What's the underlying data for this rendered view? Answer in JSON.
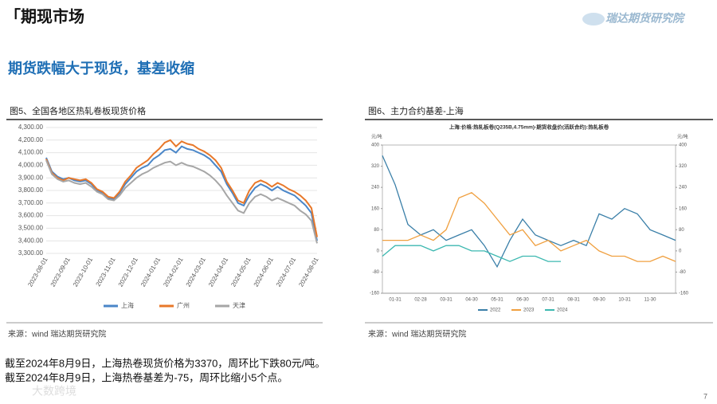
{
  "header": {
    "title": "期现市场",
    "logo": "瑞达期货研究院"
  },
  "subtitle": "期货跌幅大于现货，基差收缩",
  "figures": [
    {
      "caption": "图5、全国各地区热轧卷板现货价格",
      "source": "来源：wind  瑞达期货研究院"
    },
    {
      "caption": "图6、主力合约基差-上海",
      "source": "来源：wind  瑞达期货研究院"
    }
  ],
  "notes": [
    "截至2024年8月9日，上海热卷现货价格为3370，周环比下跌80元/吨。",
    "截至2024年8月9日，上海热卷基差为-75，周环比缩小5个点。"
  ],
  "watermark": "大数跨境",
  "page_number": "7",
  "chart_data": [
    {
      "type": "line",
      "categories": [
        "2023-08-01",
        null,
        null,
        null,
        "2023-09-01",
        null,
        null,
        null,
        "2023-10-01",
        null,
        null,
        null,
        "2023-11-01",
        null,
        null,
        null,
        "2023-12-01",
        null,
        null,
        null,
        "2024-01-01",
        null,
        null,
        null,
        "2024-02-01",
        null,
        null,
        null,
        "2024-03-01",
        null,
        null,
        null,
        "2024-04-01",
        null,
        null,
        null,
        "2024-05-01",
        null,
        null,
        null,
        "2024-06-01",
        null,
        null,
        null,
        "2024-07-01",
        null,
        null,
        null,
        "2024-08-01"
      ],
      "series": [
        {
          "name": "上海",
          "color": "#4a86c8",
          "values": [
            4060,
            3950,
            3910,
            3890,
            3900,
            3880,
            3870,
            3880,
            3850,
            3800,
            3780,
            3740,
            3730,
            3780,
            3850,
            3900,
            3950,
            3980,
            4000,
            4050,
            4080,
            4120,
            4130,
            4100,
            4150,
            4130,
            4120,
            4100,
            4080,
            4050,
            4000,
            3950,
            3850,
            3780,
            3700,
            3680,
            3760,
            3820,
            3850,
            3830,
            3800,
            3830,
            3800,
            3780,
            3760,
            3720,
            3680,
            3620,
            3400
          ]
        },
        {
          "name": "广州",
          "color": "#e8782a",
          "values": [
            4050,
            3940,
            3900,
            3880,
            3900,
            3890,
            3880,
            3890,
            3860,
            3810,
            3790,
            3750,
            3740,
            3790,
            3870,
            3920,
            3980,
            4010,
            4040,
            4090,
            4130,
            4180,
            4200,
            4150,
            4190,
            4170,
            4160,
            4130,
            4110,
            4080,
            4040,
            3980,
            3870,
            3800,
            3720,
            3700,
            3800,
            3860,
            3880,
            3860,
            3830,
            3860,
            3840,
            3810,
            3790,
            3760,
            3720,
            3660,
            3430
          ]
        },
        {
          "name": "天津",
          "color": "#a6a6a6",
          "values": [
            4040,
            3930,
            3890,
            3870,
            3880,
            3860,
            3850,
            3860,
            3830,
            3790,
            3770,
            3730,
            3720,
            3760,
            3820,
            3860,
            3900,
            3930,
            3950,
            3980,
            4000,
            4020,
            4030,
            4000,
            4020,
            4000,
            3990,
            3970,
            3950,
            3920,
            3880,
            3830,
            3760,
            3700,
            3640,
            3620,
            3700,
            3750,
            3770,
            3750,
            3720,
            3740,
            3720,
            3700,
            3680,
            3640,
            3610,
            3560,
            3380
          ]
        }
      ],
      "ylim": [
        3300,
        4300
      ],
      "yticks": [
        {
          "value": 3300,
          "label": "3,300.00"
        },
        {
          "value": 3400,
          "label": "3,400.00"
        },
        {
          "value": 3500,
          "label": "3,500.00"
        },
        {
          "value": 3600,
          "label": "3,600.00"
        },
        {
          "value": 3700,
          "label": "3,700.00"
        },
        {
          "value": 3800,
          "label": "3,800.00"
        },
        {
          "value": 3900,
          "label": "3,900.00"
        },
        {
          "value": 4000,
          "label": "4,000.00"
        },
        {
          "value": 4100,
          "label": "4,100.00"
        },
        {
          "value": 4200,
          "label": "4,200.00"
        },
        {
          "value": 4300,
          "label": "4,300.00"
        }
      ],
      "grid": true,
      "legend": "bottom"
    },
    {
      "type": "line",
      "title": "上海:价格:热轧板卷(Q235B,4.75mm)-期货收盘价(活跃合约):热轧板卷",
      "y_label": "元/吨",
      "y2_label": "元/吨",
      "categories": [
        null,
        "01-31",
        null,
        "02-28",
        null,
        "03-31",
        null,
        "04-30",
        null,
        "05-31",
        null,
        "06-30",
        null,
        "07-31",
        null,
        "08-31",
        null,
        "09-30",
        null,
        "10-31",
        null,
        "11-30",
        null,
        null
      ],
      "series": [
        {
          "name": "2022",
          "color": "#3a7fa8",
          "values": [
            360,
            250,
            100,
            60,
            80,
            40,
            60,
            80,
            20,
            -60,
            40,
            120,
            60,
            40,
            20,
            40,
            20,
            140,
            120,
            160,
            140,
            80,
            60,
            40
          ]
        },
        {
          "name": "2023",
          "color": "#f0a040",
          "values": [
            40,
            40,
            40,
            60,
            40,
            80,
            200,
            220,
            180,
            120,
            60,
            80,
            20,
            40,
            0,
            20,
            40,
            0,
            -20,
            -20,
            -40,
            -40,
            -20,
            -40
          ]
        },
        {
          "name": "2024",
          "color": "#3cb8b0",
          "values": [
            -20,
            20,
            20,
            20,
            0,
            20,
            20,
            0,
            0,
            -20,
            -40,
            -20,
            -20,
            -40,
            -40,
            null,
            null,
            null,
            null,
            null,
            null,
            null,
            null,
            null
          ]
        }
      ],
      "ylim": [
        -160,
        400
      ],
      "yticks": [
        -160,
        -80,
        0,
        80,
        160,
        240,
        320,
        400
      ],
      "y2lim": [
        -160,
        400
      ],
      "y2ticks": [
        -160,
        -80,
        0,
        80,
        160,
        240,
        320,
        400
      ],
      "grid": false,
      "legend": "bottom"
    }
  ]
}
